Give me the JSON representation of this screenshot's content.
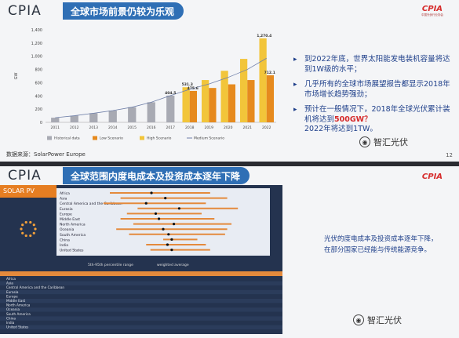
{
  "slide1": {
    "logo": "CPIA",
    "title": "全球市场前景仍较为乐观",
    "badge": "CPIA",
    "badge_sub": "中国光伏行业协会",
    "bullets": [
      {
        "text": "到2022年底，世界太阳能发电装机容量将达到1W级的水平；"
      },
      {
        "text": "几乎所有的全球市场展望报告都显示2018年市场增长趋势强劲；"
      },
      {
        "pre": "预计在一般情况下，2018年全球光伏累计装机将达到",
        "highlight": "500GW？",
        "post": "2022年将达到1TW。"
      }
    ],
    "source": "数据来源：SolarPower Europe",
    "page": "12",
    "watermark": "智汇光伏"
  },
  "chart_data": {
    "type": "bar",
    "categories": [
      "2011",
      "2012",
      "2013",
      "2014",
      "2015",
      "2016",
      "2017",
      "2018",
      "2019",
      "2020",
      "2021",
      "2022"
    ],
    "series": [
      {
        "name": "Historical data",
        "values": [
          70,
          100,
          138,
          178,
          229,
          304,
          404.5,
          null,
          null,
          null,
          null,
          null
        ],
        "color": "#a8aab3"
      },
      {
        "name": "Low Scenario",
        "values": [
          null,
          null,
          null,
          null,
          null,
          null,
          null,
          475.6,
          520,
          575,
          640,
          712.1
        ],
        "color": "#e68a1e"
      },
      {
        "name": "High Scenario",
        "values": [
          null,
          null,
          null,
          null,
          null,
          null,
          null,
          531.3,
          640,
          780,
          960,
          1270.4
        ],
        "color": "#f2c53a"
      },
      {
        "name": "Medium Scenario",
        "values": [
          null,
          null,
          null,
          null,
          null,
          null,
          null,
          500,
          580,
          680,
          800,
          970
        ],
        "color": "#6f7fa8"
      }
    ],
    "data_labels": {
      "2017": "404.5",
      "2018_high": "531.3",
      "2018_low": "475.6",
      "2022_high": "1,270.4",
      "2022_low": "712.1"
    },
    "ylabel": "GW",
    "yticks": [
      0,
      200,
      400,
      600,
      800,
      1000,
      1200,
      1400
    ],
    "ylim": [
      0,
      1400
    ],
    "legend_position": "bottom",
    "legend": [
      "Historical data",
      "Low Scenario",
      "High Scenario",
      "Medium Scenario"
    ]
  },
  "slide2": {
    "title": "全球范围内度电成本及投资成本逐年下降",
    "badge": "CPIA",
    "solar_pv": "SOLAR PV",
    "regions": [
      "Africa",
      "Asia",
      "Central America and the Caribbean",
      "Eurasia",
      "Europe",
      "Middle East",
      "North America",
      "Oceania",
      "South America",
      "China",
      "India",
      "United States"
    ],
    "legend_range": "5th-95th percentile range",
    "legend_avg": "weighted average",
    "note": "光伏的度电成本及投资成本逐年下降，在部分国家已经能与传统能源竞争。",
    "watermark": "智汇光伏"
  }
}
